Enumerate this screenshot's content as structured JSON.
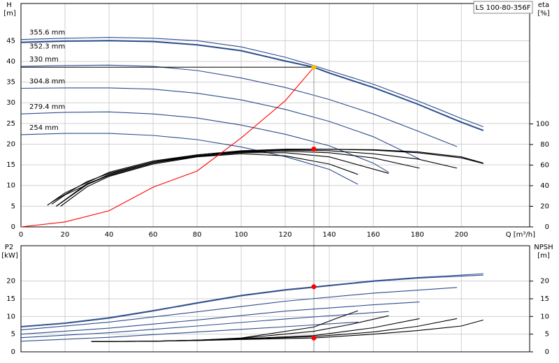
{
  "chart_data": [
    {
      "type": "line",
      "title": "LS 100-80-356F",
      "ylabel": "H",
      "y_unit": "[m]",
      "y2label": "eta",
      "y2_unit": "[%]",
      "xlabel": "Q [m³/h]",
      "xlim": [
        0,
        231
      ],
      "xticks": [
        0,
        20,
        40,
        60,
        80,
        100,
        120,
        140,
        160,
        180,
        200
      ],
      "ylim": [
        0,
        54
      ],
      "yticks": [
        0,
        5,
        10,
        15,
        20,
        25,
        30,
        35,
        40,
        45
      ],
      "y2lim": [
        0,
        217
      ],
      "y2ticks": [
        0,
        20,
        40,
        60,
        80,
        100
      ],
      "grid": true,
      "series": [
        {
          "name": "355.6 mm",
          "color": "#2b4c8c",
          "x": [
            0,
            20,
            40,
            60,
            80,
            100,
            120,
            133,
            140,
            160,
            180,
            200,
            210
          ],
          "values": [
            45.3,
            45.6,
            45.8,
            45.6,
            45,
            43.5,
            41,
            39,
            37.8,
            34.5,
            30.5,
            26.2,
            24.2
          ]
        },
        {
          "name": "352.3 mm",
          "color": "#2b4c8c",
          "x": [
            0,
            20,
            40,
            60,
            80,
            100,
            120,
            133,
            140,
            160,
            180,
            200,
            210
          ],
          "values": [
            44.6,
            44.9,
            45,
            44.8,
            44,
            42.6,
            40.1,
            38.6,
            37.2,
            33.7,
            29.7,
            25.3,
            23.3
          ]
        },
        {
          "name": "330 mm",
          "color": "#2b4c8c",
          "x": [
            0,
            20,
            40,
            60,
            80,
            100,
            120,
            140,
            160,
            180,
            198
          ],
          "values": [
            38.8,
            39,
            39.1,
            38.8,
            37.8,
            36,
            33.7,
            30.8,
            27.3,
            23.2,
            19.4
          ]
        },
        {
          "name": "304.8 mm",
          "color": "#2b4c8c",
          "x": [
            0,
            20,
            40,
            60,
            80,
            100,
            120,
            140,
            160,
            181
          ],
          "values": [
            33.5,
            33.6,
            33.6,
            33.3,
            32.3,
            30.7,
            28.4,
            25.5,
            21.8,
            16.4
          ]
        },
        {
          "name": "279.4 mm",
          "color": "#2b4c8c",
          "x": [
            0,
            20,
            40,
            60,
            80,
            100,
            120,
            140,
            160,
            167
          ],
          "values": [
            27.3,
            27.7,
            27.8,
            27.3,
            26.3,
            24.6,
            22.4,
            19.6,
            15.4,
            13.2
          ]
        },
        {
          "name": "254 mm",
          "color": "#2b4c8c",
          "x": [
            0,
            20,
            40,
            60,
            80,
            100,
            120,
            140,
            153
          ],
          "values": [
            22.3,
            22.6,
            22.6,
            22.1,
            21.1,
            19.3,
            17,
            13.9,
            10.3
          ]
        },
        {
          "axis": "y2",
          "color": "#000000",
          "x": [
            12,
            20,
            40,
            60,
            80,
            100,
            120,
            133,
            160,
            180,
            200,
            210
          ],
          "values": [
            21,
            33,
            53,
            64,
            70,
            74,
            75.5,
            75.6,
            75,
            73,
            68,
            62
          ]
        },
        {
          "axis": "y2",
          "color": "#000000",
          "x": [
            14,
            20,
            40,
            60,
            80,
            100,
            120,
            140,
            160,
            180,
            200,
            210
          ],
          "values": [
            22,
            31,
            51,
            63,
            70,
            73.5,
            75,
            75.4,
            74.5,
            72,
            67,
            61.5
          ]
        },
        {
          "axis": "y2",
          "color": "#000000",
          "x": [
            14,
            30,
            40,
            60,
            80,
            100,
            120,
            140,
            160,
            180,
            198
          ],
          "values": [
            24,
            44,
            52,
            63,
            69,
            73,
            74.5,
            74,
            71,
            66,
            57
          ]
        },
        {
          "axis": "y2",
          "color": "#000000",
          "x": [
            16,
            30,
            40,
            60,
            80,
            100,
            120,
            140,
            160,
            181
          ],
          "values": [
            20,
            42,
            50,
            62,
            69,
            72.5,
            73.5,
            72,
            67,
            57
          ]
        },
        {
          "axis": "y2",
          "color": "#000000",
          "x": [
            16,
            30,
            40,
            60,
            80,
            100,
            120,
            140,
            167
          ],
          "values": [
            20,
            41,
            50,
            62,
            68.5,
            72,
            72,
            68,
            52
          ]
        },
        {
          "axis": "y2",
          "color": "#000000",
          "x": [
            18,
            30,
            40,
            60,
            80,
            100,
            120,
            140,
            153
          ],
          "values": [
            20,
            39,
            49,
            61,
            68,
            71,
            69,
            61,
            51
          ]
        },
        {
          "color": "#ff0000",
          "x": [
            0,
            20,
            40,
            60,
            80,
            100,
            120,
            133
          ],
          "values": [
            0,
            1.2,
            3.9,
            9.6,
            13.5,
            21.5,
            30.5,
            38.6
          ]
        }
      ],
      "markers": [
        {
          "x": 133,
          "y": 38.6,
          "color": "#f2c200"
        },
        {
          "x": 133,
          "y": 75.6,
          "axis": "y2",
          "color": "#ff0000"
        }
      ]
    },
    {
      "type": "line",
      "ylabel": "P2",
      "y_unit": "[kW]",
      "y2label": "NPSH",
      "y2_unit": "[m]",
      "xlim": [
        0,
        231
      ],
      "ylim": [
        0,
        30
      ],
      "yticks": [
        0,
        5,
        10,
        15,
        20
      ],
      "y2lim": [
        0,
        30
      ],
      "y2ticks": [
        0,
        5,
        10,
        15,
        20
      ],
      "grid": true,
      "series": [
        {
          "color": "#2b4c8c",
          "x": [
            0,
            20,
            40,
            60,
            80,
            100,
            120,
            133,
            160,
            180,
            200,
            210
          ],
          "values": [
            7.2,
            8.2,
            9.7,
            11.7,
            13.9,
            16,
            17.6,
            18.4,
            20.1,
            21,
            21.7,
            22.1
          ]
        },
        {
          "color": "#2b4c8c",
          "x": [
            0,
            20,
            40,
            60,
            80,
            100,
            120,
            133,
            160,
            180,
            200,
            210
          ],
          "values": [
            7,
            8,
            9.5,
            11.5,
            13.7,
            15.8,
            17.4,
            18.2,
            19.9,
            20.8,
            21.4,
            21.7
          ]
        },
        {
          "color": "#2b4c8c",
          "x": [
            0,
            40,
            80,
            120,
            160,
            198
          ],
          "values": [
            6.2,
            8.4,
            11.3,
            14.3,
            16.6,
            18.2
          ]
        },
        {
          "color": "#2b4c8c",
          "x": [
            0,
            40,
            80,
            120,
            160,
            181
          ],
          "values": [
            5,
            6.7,
            9,
            11.5,
            13.3,
            14.1
          ]
        },
        {
          "color": "#2b4c8c",
          "x": [
            0,
            40,
            80,
            120,
            167
          ],
          "values": [
            4,
            5.4,
            7.3,
            9.3,
            11.4
          ]
        },
        {
          "color": "#2b4c8c",
          "x": [
            0,
            40,
            80,
            120,
            153
          ],
          "values": [
            3,
            4.1,
            5.6,
            7.1,
            8.4
          ]
        },
        {
          "axis": "y2",
          "color": "#000000",
          "x": [
            32,
            60,
            80,
            100,
            133,
            160,
            180,
            200,
            210
          ],
          "values": [
            2.9,
            3,
            3.2,
            3.5,
            3.9,
            5,
            6,
            7.3,
            9
          ]
        },
        {
          "axis": "y2",
          "color": "#000000",
          "x": [
            32,
            60,
            80,
            100,
            133,
            160,
            180,
            198
          ],
          "values": [
            2.9,
            3,
            3.2,
            3.6,
            4.3,
            5.6,
            7.2,
            9.4
          ]
        },
        {
          "axis": "y2",
          "color": "#000000",
          "x": [
            32,
            60,
            80,
            100,
            133,
            160,
            181
          ],
          "values": [
            2.9,
            3,
            3.3,
            3.7,
            4.6,
            6.8,
            9.4
          ]
        },
        {
          "axis": "y2",
          "color": "#000000",
          "x": [
            32,
            60,
            80,
            100,
            133,
            150,
            167
          ],
          "values": [
            2.9,
            3,
            3.3,
            3.8,
            5.8,
            7.8,
            10.2
          ]
        },
        {
          "axis": "y2",
          "color": "#000000",
          "x": [
            32,
            60,
            80,
            100,
            133,
            143,
            153
          ],
          "values": [
            2.9,
            3,
            3.3,
            3.9,
            7,
            9.4,
            11.6
          ]
        }
      ],
      "markers": [
        {
          "x": 133,
          "y": 18.4,
          "color": "#ff0000"
        },
        {
          "x": 133,
          "y": 3.9,
          "axis": "y2",
          "color": "#ff0000"
        }
      ]
    }
  ]
}
